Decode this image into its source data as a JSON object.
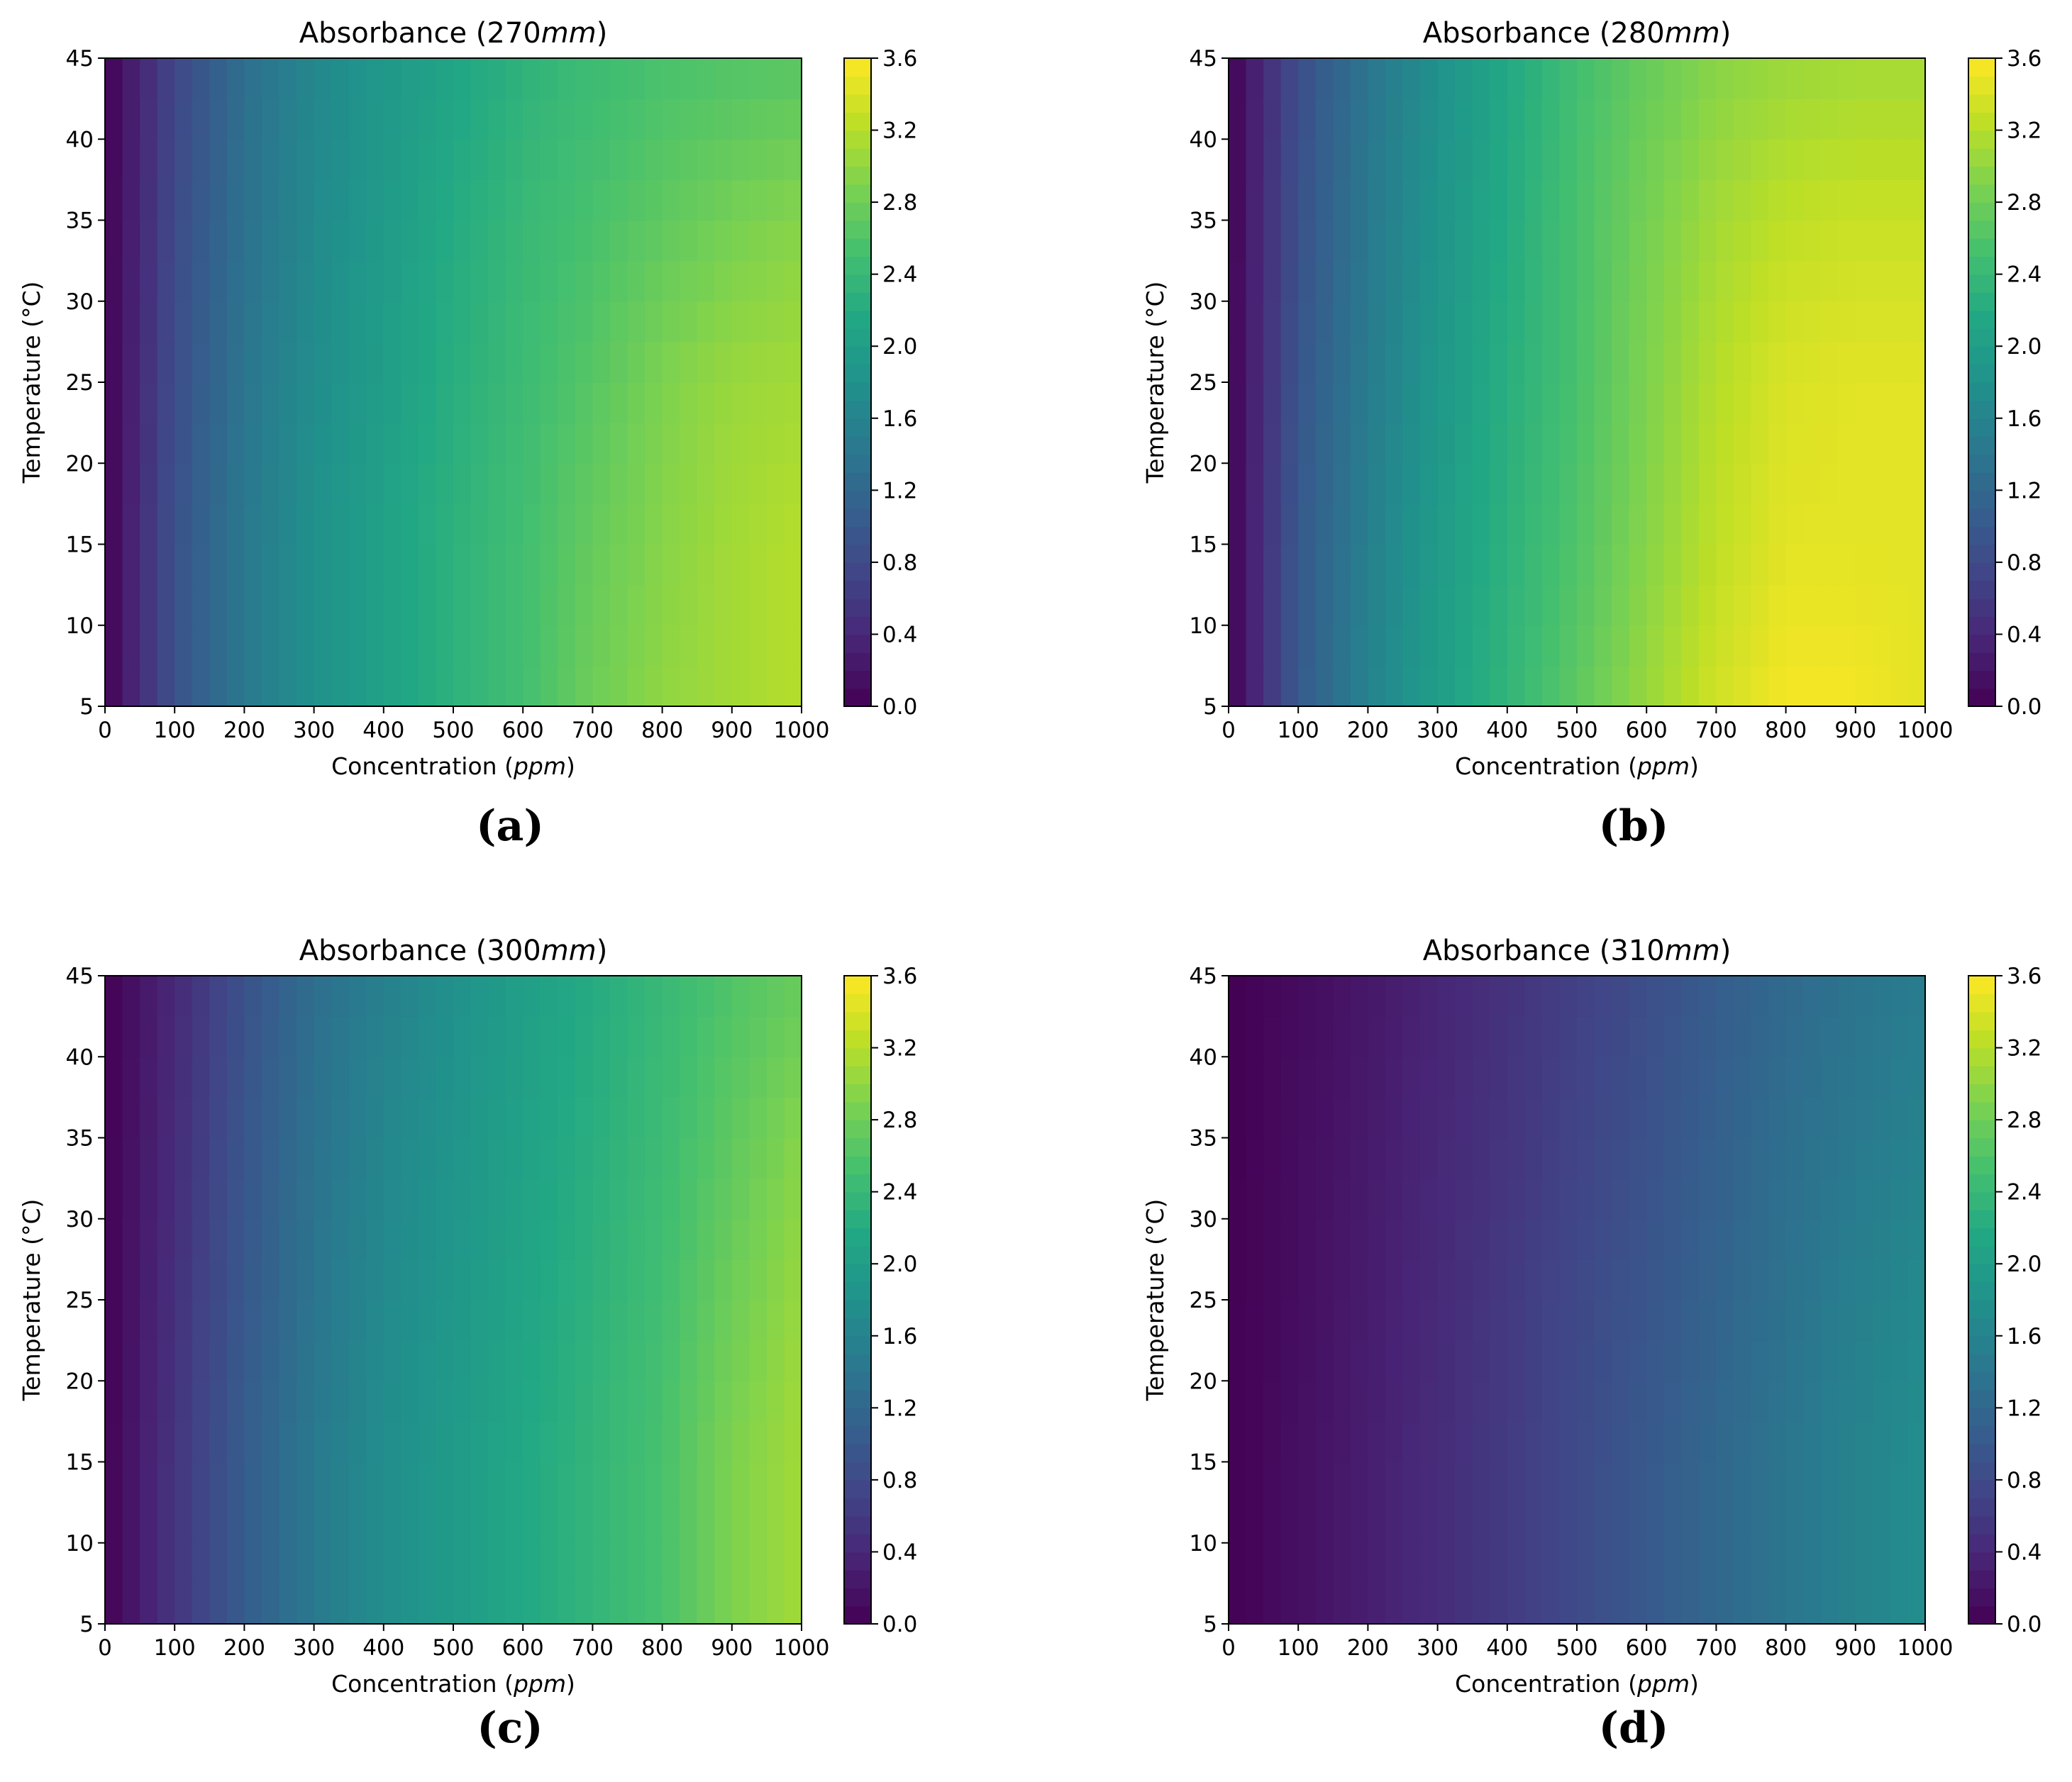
{
  "chart_data": [
    {
      "type": "heatmap",
      "panel_label": "(a)",
      "title_prefix": "Absorbance (270",
      "title_unit": "mm",
      "title_suffix": ")",
      "xlabel_prefix": "Concentration (",
      "xlabel_unit": "ppm",
      "xlabel_suffix": ")",
      "ylabel": "Temperature (°C)",
      "xlim": [
        0,
        1000
      ],
      "ylim": [
        5,
        45
      ],
      "xticks": [
        "0",
        "100",
        "200",
        "300",
        "400",
        "500",
        "600",
        "700",
        "800",
        "900",
        "1000"
      ],
      "yticks": [
        "5",
        "10",
        "15",
        "20",
        "25",
        "30",
        "35",
        "40",
        "45"
      ],
      "colorbar_ticks": [
        "0.0",
        "0.4",
        "0.8",
        "1.2",
        "1.6",
        "2.0",
        "2.4",
        "2.8",
        "3.2",
        "3.6"
      ],
      "colorbar_range": [
        0,
        3.6
      ],
      "colormap": "viridis",
      "temperatures": [
        5,
        15,
        25,
        35,
        45
      ],
      "concentrations": [
        0,
        100,
        200,
        300,
        400,
        500,
        600,
        700,
        800,
        900,
        1000
      ],
      "values": [
        [
          0.0,
          0.9,
          1.45,
          1.8,
          2.05,
          2.3,
          2.5,
          2.8,
          3.0,
          3.1,
          3.2
        ],
        [
          0.0,
          0.9,
          1.45,
          1.8,
          2.05,
          2.3,
          2.5,
          2.75,
          2.95,
          3.1,
          3.2
        ],
        [
          0.0,
          0.85,
          1.4,
          1.75,
          2.0,
          2.25,
          2.45,
          2.65,
          2.9,
          3.05,
          3.1
        ],
        [
          0.0,
          0.8,
          1.35,
          1.7,
          1.95,
          2.2,
          2.4,
          2.55,
          2.7,
          2.85,
          2.95
        ],
        [
          0.0,
          0.75,
          1.3,
          1.65,
          1.9,
          2.1,
          2.3,
          2.45,
          2.55,
          2.6,
          2.65
        ]
      ]
    },
    {
      "type": "heatmap",
      "panel_label": "(b)",
      "title_prefix": "Absorbance (280",
      "title_unit": "mm",
      "title_suffix": ")",
      "xlabel_prefix": "Concentration (",
      "xlabel_unit": "ppm",
      "xlabel_suffix": ")",
      "ylabel": "Temperature (°C)",
      "xlim": [
        0,
        1000
      ],
      "ylim": [
        5,
        45
      ],
      "xticks": [
        "0",
        "100",
        "200",
        "300",
        "400",
        "500",
        "600",
        "700",
        "800",
        "900",
        "1000"
      ],
      "yticks": [
        "5",
        "10",
        "15",
        "20",
        "25",
        "30",
        "35",
        "40",
        "45"
      ],
      "colorbar_ticks": [
        "0.0",
        "0.4",
        "0.8",
        "1.2",
        "1.6",
        "2.0",
        "2.4",
        "2.8",
        "3.2",
        "3.6"
      ],
      "colorbar_range": [
        0,
        3.6
      ],
      "colormap": "viridis",
      "temperatures": [
        5,
        15,
        25,
        35,
        45
      ],
      "concentrations": [
        0,
        100,
        200,
        300,
        400,
        500,
        600,
        700,
        800,
        900,
        1000
      ],
      "values": [
        [
          0.0,
          1.0,
          1.6,
          2.0,
          2.35,
          2.7,
          3.05,
          3.35,
          3.55,
          3.55,
          3.45
        ],
        [
          0.0,
          1.0,
          1.55,
          1.95,
          2.3,
          2.6,
          2.95,
          3.25,
          3.45,
          3.45,
          3.45
        ],
        [
          0.0,
          0.95,
          1.5,
          1.9,
          2.25,
          2.55,
          2.9,
          3.2,
          3.4,
          3.45,
          3.45
        ],
        [
          0.0,
          0.9,
          1.45,
          1.85,
          2.2,
          2.55,
          2.85,
          3.1,
          3.25,
          3.3,
          3.3
        ],
        [
          0.0,
          0.85,
          1.4,
          1.8,
          2.15,
          2.5,
          2.75,
          2.95,
          3.05,
          3.1,
          3.1
        ]
      ]
    },
    {
      "type": "heatmap",
      "panel_label": "(c)",
      "title_prefix": "Absorbance (300",
      "title_unit": "mm",
      "title_suffix": ")",
      "xlabel_prefix": "Concentration (",
      "xlabel_unit": "ppm",
      "xlabel_suffix": ")",
      "ylabel": "Temperature (°C)",
      "xlim": [
        0,
        1000
      ],
      "ylim": [
        5,
        45
      ],
      "xticks": [
        "0",
        "100",
        "200",
        "300",
        "400",
        "500",
        "600",
        "700",
        "800",
        "900",
        "1000"
      ],
      "yticks": [
        "5",
        "10",
        "15",
        "20",
        "25",
        "30",
        "35",
        "40",
        "45"
      ],
      "colorbar_ticks": [
        "0.0",
        "0.4",
        "0.8",
        "1.2",
        "1.6",
        "2.0",
        "2.4",
        "2.8",
        "3.2",
        "3.6"
      ],
      "colorbar_range": [
        0,
        3.6
      ],
      "colormap": "viridis",
      "temperatures": [
        5,
        15,
        25,
        35,
        45
      ],
      "concentrations": [
        0,
        100,
        200,
        300,
        400,
        500,
        600,
        700,
        800,
        900,
        1000
      ],
      "values": [
        [
          0.0,
          0.55,
          1.05,
          1.45,
          1.75,
          1.95,
          2.15,
          2.35,
          2.55,
          2.9,
          3.1
        ],
        [
          0.0,
          0.55,
          1.05,
          1.45,
          1.75,
          1.95,
          2.15,
          2.35,
          2.55,
          2.9,
          3.1
        ],
        [
          0.0,
          0.5,
          1.0,
          1.4,
          1.7,
          1.9,
          2.1,
          2.3,
          2.5,
          2.8,
          3.05
        ],
        [
          0.0,
          0.45,
          0.95,
          1.35,
          1.65,
          1.85,
          2.05,
          2.25,
          2.45,
          2.7,
          2.95
        ],
        [
          0.0,
          0.4,
          0.9,
          1.3,
          1.55,
          1.8,
          2.0,
          2.2,
          2.4,
          2.6,
          2.75
        ]
      ]
    },
    {
      "type": "heatmap",
      "panel_label": "(d)",
      "title_prefix": "Absorbance (310",
      "title_unit": "mm",
      "title_suffix": ")",
      "xlabel_prefix": "Concentration (",
      "xlabel_unit": "ppm",
      "xlabel_suffix": ")",
      "ylabel": "Temperature (°C)",
      "xlim": [
        0,
        1000
      ],
      "ylim": [
        5,
        45
      ],
      "xticks": [
        "0",
        "100",
        "200",
        "300",
        "400",
        "500",
        "600",
        "700",
        "800",
        "900",
        "1000"
      ],
      "yticks": [
        "5",
        "10",
        "15",
        "20",
        "25",
        "30",
        "35",
        "40",
        "45"
      ],
      "colorbar_ticks": [
        "0.0",
        "0.4",
        "0.8",
        "1.2",
        "1.6",
        "2.0",
        "2.4",
        "2.8",
        "3.2",
        "3.6"
      ],
      "colorbar_range": [
        0,
        3.6
      ],
      "colormap": "viridis",
      "temperatures": [
        5,
        15,
        25,
        35,
        45
      ],
      "concentrations": [
        0,
        100,
        200,
        300,
        400,
        500,
        600,
        700,
        800,
        900,
        1000
      ],
      "values": [
        [
          0.0,
          0.15,
          0.3,
          0.45,
          0.62,
          0.8,
          1.0,
          1.2,
          1.4,
          1.6,
          1.75
        ],
        [
          0.0,
          0.15,
          0.3,
          0.45,
          0.62,
          0.8,
          1.0,
          1.2,
          1.4,
          1.6,
          1.75
        ],
        [
          0.0,
          0.13,
          0.28,
          0.43,
          0.6,
          0.78,
          0.95,
          1.15,
          1.35,
          1.55,
          1.7
        ],
        [
          0.0,
          0.12,
          0.26,
          0.4,
          0.55,
          0.72,
          0.9,
          1.1,
          1.3,
          1.45,
          1.6
        ],
        [
          0.0,
          0.1,
          0.23,
          0.37,
          0.52,
          0.68,
          0.85,
          1.05,
          1.22,
          1.38,
          1.5
        ]
      ]
    }
  ]
}
